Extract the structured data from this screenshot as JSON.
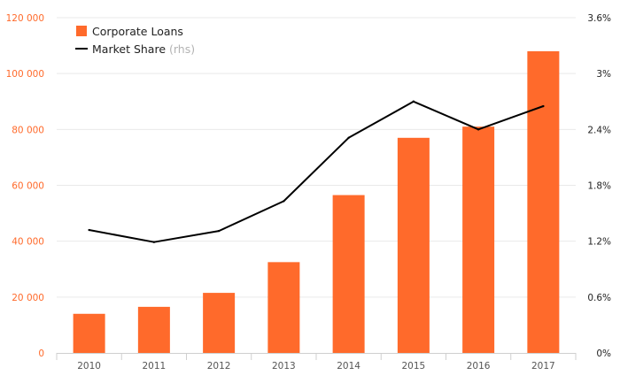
{
  "chart_data": {
    "type": "bar",
    "categories": [
      "2010",
      "2011",
      "2012",
      "2013",
      "2014",
      "2015",
      "2016",
      "2017"
    ],
    "series": [
      {
        "name": "Corporate Loans",
        "type": "bar",
        "axis": "left",
        "color": "#ff6a2b",
        "values": [
          14000,
          16500,
          21500,
          32500,
          56500,
          77000,
          81000,
          108000
        ]
      },
      {
        "name": "Market Share",
        "legend_note": "(rhs)",
        "type": "line",
        "axis": "right",
        "color": "#000000",
        "values": [
          1.32,
          1.19,
          1.31,
          1.63,
          2.31,
          2.7,
          2.4,
          2.65
        ]
      }
    ],
    "y_left": {
      "ylim": [
        0,
        120000
      ],
      "ticks": [
        0,
        20000,
        40000,
        60000,
        80000,
        100000,
        120000
      ],
      "tick_labels": [
        "0",
        "20 000",
        "40 000",
        "60 000",
        "80 000",
        "100 000",
        "120 000"
      ],
      "tick_color": "#ff6a2b"
    },
    "y_right": {
      "ylim": [
        0,
        3.6
      ],
      "ticks": [
        0,
        0.6,
        1.2,
        1.8,
        2.4,
        3.0,
        3.6
      ],
      "tick_labels": [
        "0%",
        "0.6%",
        "1.2%",
        "1.8%",
        "2.4%",
        "3%",
        "3.6%"
      ]
    },
    "grid": true,
    "legend_position": "top-left"
  }
}
